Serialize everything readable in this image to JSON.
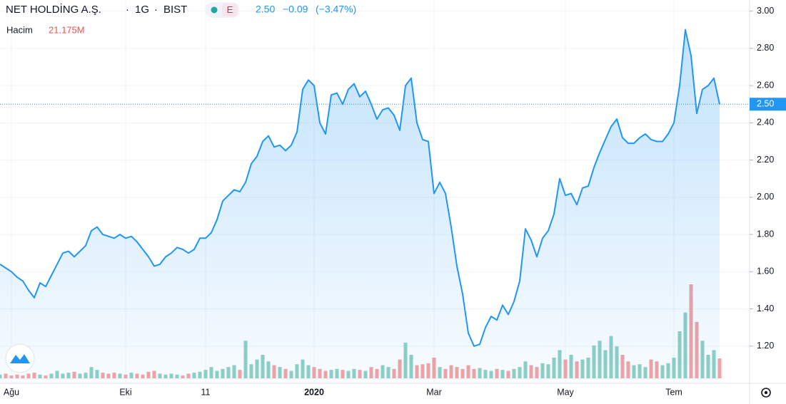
{
  "chart_data": {
    "type": "line",
    "title": "NET HOLDİNG A.Ş.",
    "interval": "1G",
    "exchange": "BIST",
    "badge": "E",
    "last_price": {
      "value": 2.5,
      "label": "2.50"
    },
    "change": {
      "value": -0.09,
      "label": "−0.09"
    },
    "change_pct": {
      "value": -3.47,
      "label": "(−3.47%)"
    },
    "volume_label": "21.175M",
    "categories": [
      null,
      null,
      "Ağu",
      null,
      null,
      null,
      null,
      null,
      null,
      null,
      null,
      null,
      null,
      null,
      null,
      null,
      null,
      null,
      null,
      null,
      null,
      null,
      "Eki",
      null,
      null,
      null,
      null,
      null,
      null,
      null,
      null,
      null,
      null,
      null,
      null,
      null,
      "11",
      null,
      null,
      null,
      null,
      null,
      null,
      null,
      null,
      null,
      null,
      null,
      null,
      null,
      null,
      null,
      null,
      null,
      null,
      "2020",
      null,
      null,
      null,
      null,
      null,
      null,
      null,
      null,
      null,
      null,
      null,
      null,
      null,
      null,
      null,
      null,
      null,
      null,
      null,
      null,
      "Mar",
      null,
      null,
      null,
      null,
      null,
      null,
      null,
      null,
      null,
      null,
      null,
      null,
      null,
      null,
      null,
      null,
      null,
      null,
      null,
      null,
      null,
      null,
      "May",
      null,
      null,
      null,
      null,
      null,
      null,
      null,
      null,
      null,
      null,
      null,
      null,
      null,
      null,
      null,
      null,
      null,
      null,
      "Tem",
      null,
      null,
      null,
      null,
      null,
      null,
      null,
      null
    ],
    "series": [
      {
        "color": "#2196f3",
        "values": [
          1.64,
          1.62,
          1.6,
          1.57,
          1.55,
          1.5,
          1.46,
          1.54,
          1.52,
          1.58,
          1.64,
          1.7,
          1.71,
          1.68,
          1.71,
          1.74,
          1.82,
          1.84,
          1.8,
          1.79,
          1.78,
          1.8,
          1.78,
          1.79,
          1.76,
          1.72,
          1.68,
          1.63,
          1.64,
          1.68,
          1.7,
          1.73,
          1.72,
          1.7,
          1.72,
          1.78,
          1.78,
          1.81,
          1.88,
          1.98,
          2.01,
          2.04,
          2.03,
          2.08,
          2.18,
          2.22,
          2.3,
          2.33,
          2.27,
          2.28,
          2.25,
          2.28,
          2.35,
          2.58,
          2.63,
          2.6,
          2.4,
          2.34,
          2.55,
          2.56,
          2.5,
          2.58,
          2.61,
          2.54,
          2.57,
          2.5,
          2.42,
          2.47,
          2.48,
          2.44,
          2.36,
          2.6,
          2.64,
          2.4,
          2.31,
          2.3,
          2.02,
          2.08,
          2.02,
          1.84,
          1.63,
          1.48,
          1.27,
          1.2,
          1.21,
          1.3,
          1.36,
          1.34,
          1.42,
          1.37,
          1.44,
          1.55,
          1.83,
          1.77,
          1.68,
          1.78,
          1.82,
          1.91,
          2.1,
          2.01,
          2.02,
          1.96,
          2.05,
          2.06,
          2.16,
          2.24,
          2.31,
          2.38,
          2.42,
          2.32,
          2.29,
          2.29,
          2.32,
          2.34,
          2.31,
          2.3,
          2.3,
          2.34,
          2.4,
          2.6,
          2.9,
          2.76,
          2.45,
          2.58,
          2.6,
          2.64,
          2.5
        ]
      },
      {
        "name": "Hacim",
        "up_color": "#8fcfc5",
        "down_color": "#f2a3a3",
        "values": [
          4,
          5,
          3,
          4,
          3,
          5,
          6,
          4,
          3,
          5,
          8,
          5,
          6,
          7,
          5,
          6,
          12,
          9,
          6,
          5,
          6,
          5,
          4,
          6,
          5,
          4,
          7,
          8,
          5,
          4,
          5,
          4,
          3,
          5,
          6,
          7,
          9,
          12,
          8,
          10,
          12,
          14,
          9,
          40,
          15,
          20,
          25,
          18,
          14,
          12,
          10,
          8,
          15,
          20,
          14,
          12,
          10,
          8,
          9,
          10,
          9,
          8,
          10,
          9,
          8,
          12,
          10,
          14,
          12,
          10,
          20,
          38,
          25,
          14,
          15,
          16,
          22,
          12,
          10,
          14,
          12,
          10,
          14,
          10,
          11,
          9,
          8,
          10,
          9,
          8,
          10,
          12,
          18,
          14,
          12,
          16,
          15,
          22,
          30,
          20,
          25,
          18,
          20,
          22,
          35,
          40,
          30,
          45,
          34,
          25,
          18,
          14,
          15,
          12,
          20,
          18,
          14,
          16,
          22,
          50,
          70,
          100,
          60,
          40,
          25,
          30,
          21.175
        ]
      }
    ],
    "ylim": [
      1.0,
      3.06
    ],
    "yticks": [
      {
        "value": 1.2,
        "label": "1.20"
      },
      {
        "value": 1.4,
        "label": "1.40"
      },
      {
        "value": 1.6,
        "label": "1.60"
      },
      {
        "value": 1.8,
        "label": "1.80"
      },
      {
        "value": 2.0,
        "label": "2.00"
      },
      {
        "value": 2.2,
        "label": "2.20"
      },
      {
        "value": 2.4,
        "label": "2.40"
      },
      {
        "value": 2.6,
        "label": "2.60"
      },
      {
        "value": 2.8,
        "label": "2.80"
      },
      {
        "value": 3.0,
        "label": "3.00"
      }
    ],
    "volume_ylim": [
      0,
      100
    ],
    "grid": true
  }
}
